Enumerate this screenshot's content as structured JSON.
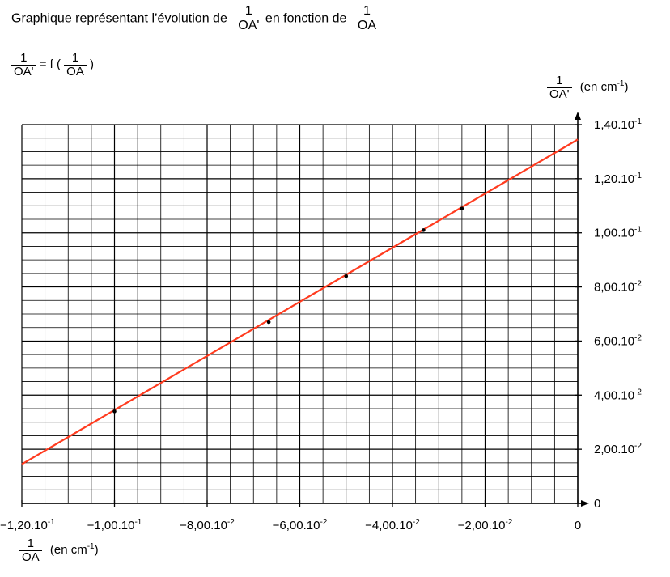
{
  "header": {
    "title_prefix": "Graphique représentant l’évolution de",
    "title_mid": "en fonction de",
    "frac_one": "1",
    "oa_prime": "OA'",
    "oa": "OA",
    "relation_eq": "= f (",
    "relation_close": ")"
  },
  "chart_data": {
    "type": "scatter",
    "title": "Graphique représentant l’évolution de 1/OA' en fonction de 1/OA",
    "subtitle": "1/OA' = f (1/OA)",
    "xlabel": "1/OA (en cm-1)",
    "ylabel": "1/OA' (en cm-1)",
    "xlim": [
      -0.12,
      0.0
    ],
    "ylim": [
      0.0,
      0.14
    ],
    "grid": true,
    "x_ticks": [
      {
        "value": -0.12,
        "mantissa": "−1,20.10",
        "exp": "-1"
      },
      {
        "value": -0.1,
        "mantissa": "−1,00.10",
        "exp": "-1"
      },
      {
        "value": -0.08,
        "mantissa": "−8,00.10",
        "exp": "-2"
      },
      {
        "value": -0.06,
        "mantissa": "−6,00.10",
        "exp": "-2"
      },
      {
        "value": -0.04,
        "mantissa": "−4,00.10",
        "exp": "-2"
      },
      {
        "value": -0.02,
        "mantissa": "−2,00.10",
        "exp": "-2"
      },
      {
        "value": 0.0,
        "mantissa": "0",
        "exp": ""
      }
    ],
    "y_ticks": [
      {
        "value": 0.14,
        "mantissa": "1,40.10",
        "exp": "-1"
      },
      {
        "value": 0.12,
        "mantissa": "1,20.10",
        "exp": "-1"
      },
      {
        "value": 0.1,
        "mantissa": "1,00.10",
        "exp": "-1"
      },
      {
        "value": 0.08,
        "mantissa": "8,00.10",
        "exp": "-2"
      },
      {
        "value": 0.06,
        "mantissa": "6,00.10",
        "exp": "-2"
      },
      {
        "value": 0.04,
        "mantissa": "4,00.10",
        "exp": "-2"
      },
      {
        "value": 0.02,
        "mantissa": "2,00.10",
        "exp": "-2"
      },
      {
        "value": 0.0,
        "mantissa": "0",
        "exp": ""
      }
    ],
    "points": [
      {
        "x": -0.1,
        "y": 0.034
      },
      {
        "x": -0.0667,
        "y": 0.067
      },
      {
        "x": -0.05,
        "y": 0.084
      },
      {
        "x": -0.0333,
        "y": 0.101
      },
      {
        "x": -0.025,
        "y": 0.109
      }
    ],
    "fit_line": {
      "x": [
        -0.12,
        0.0
      ],
      "y": [
        0.0145,
        0.1345
      ],
      "color": "#ff3b1f"
    },
    "colors": {
      "grid": "#000000",
      "points": "#000000",
      "line": "#ff3b1f"
    }
  }
}
